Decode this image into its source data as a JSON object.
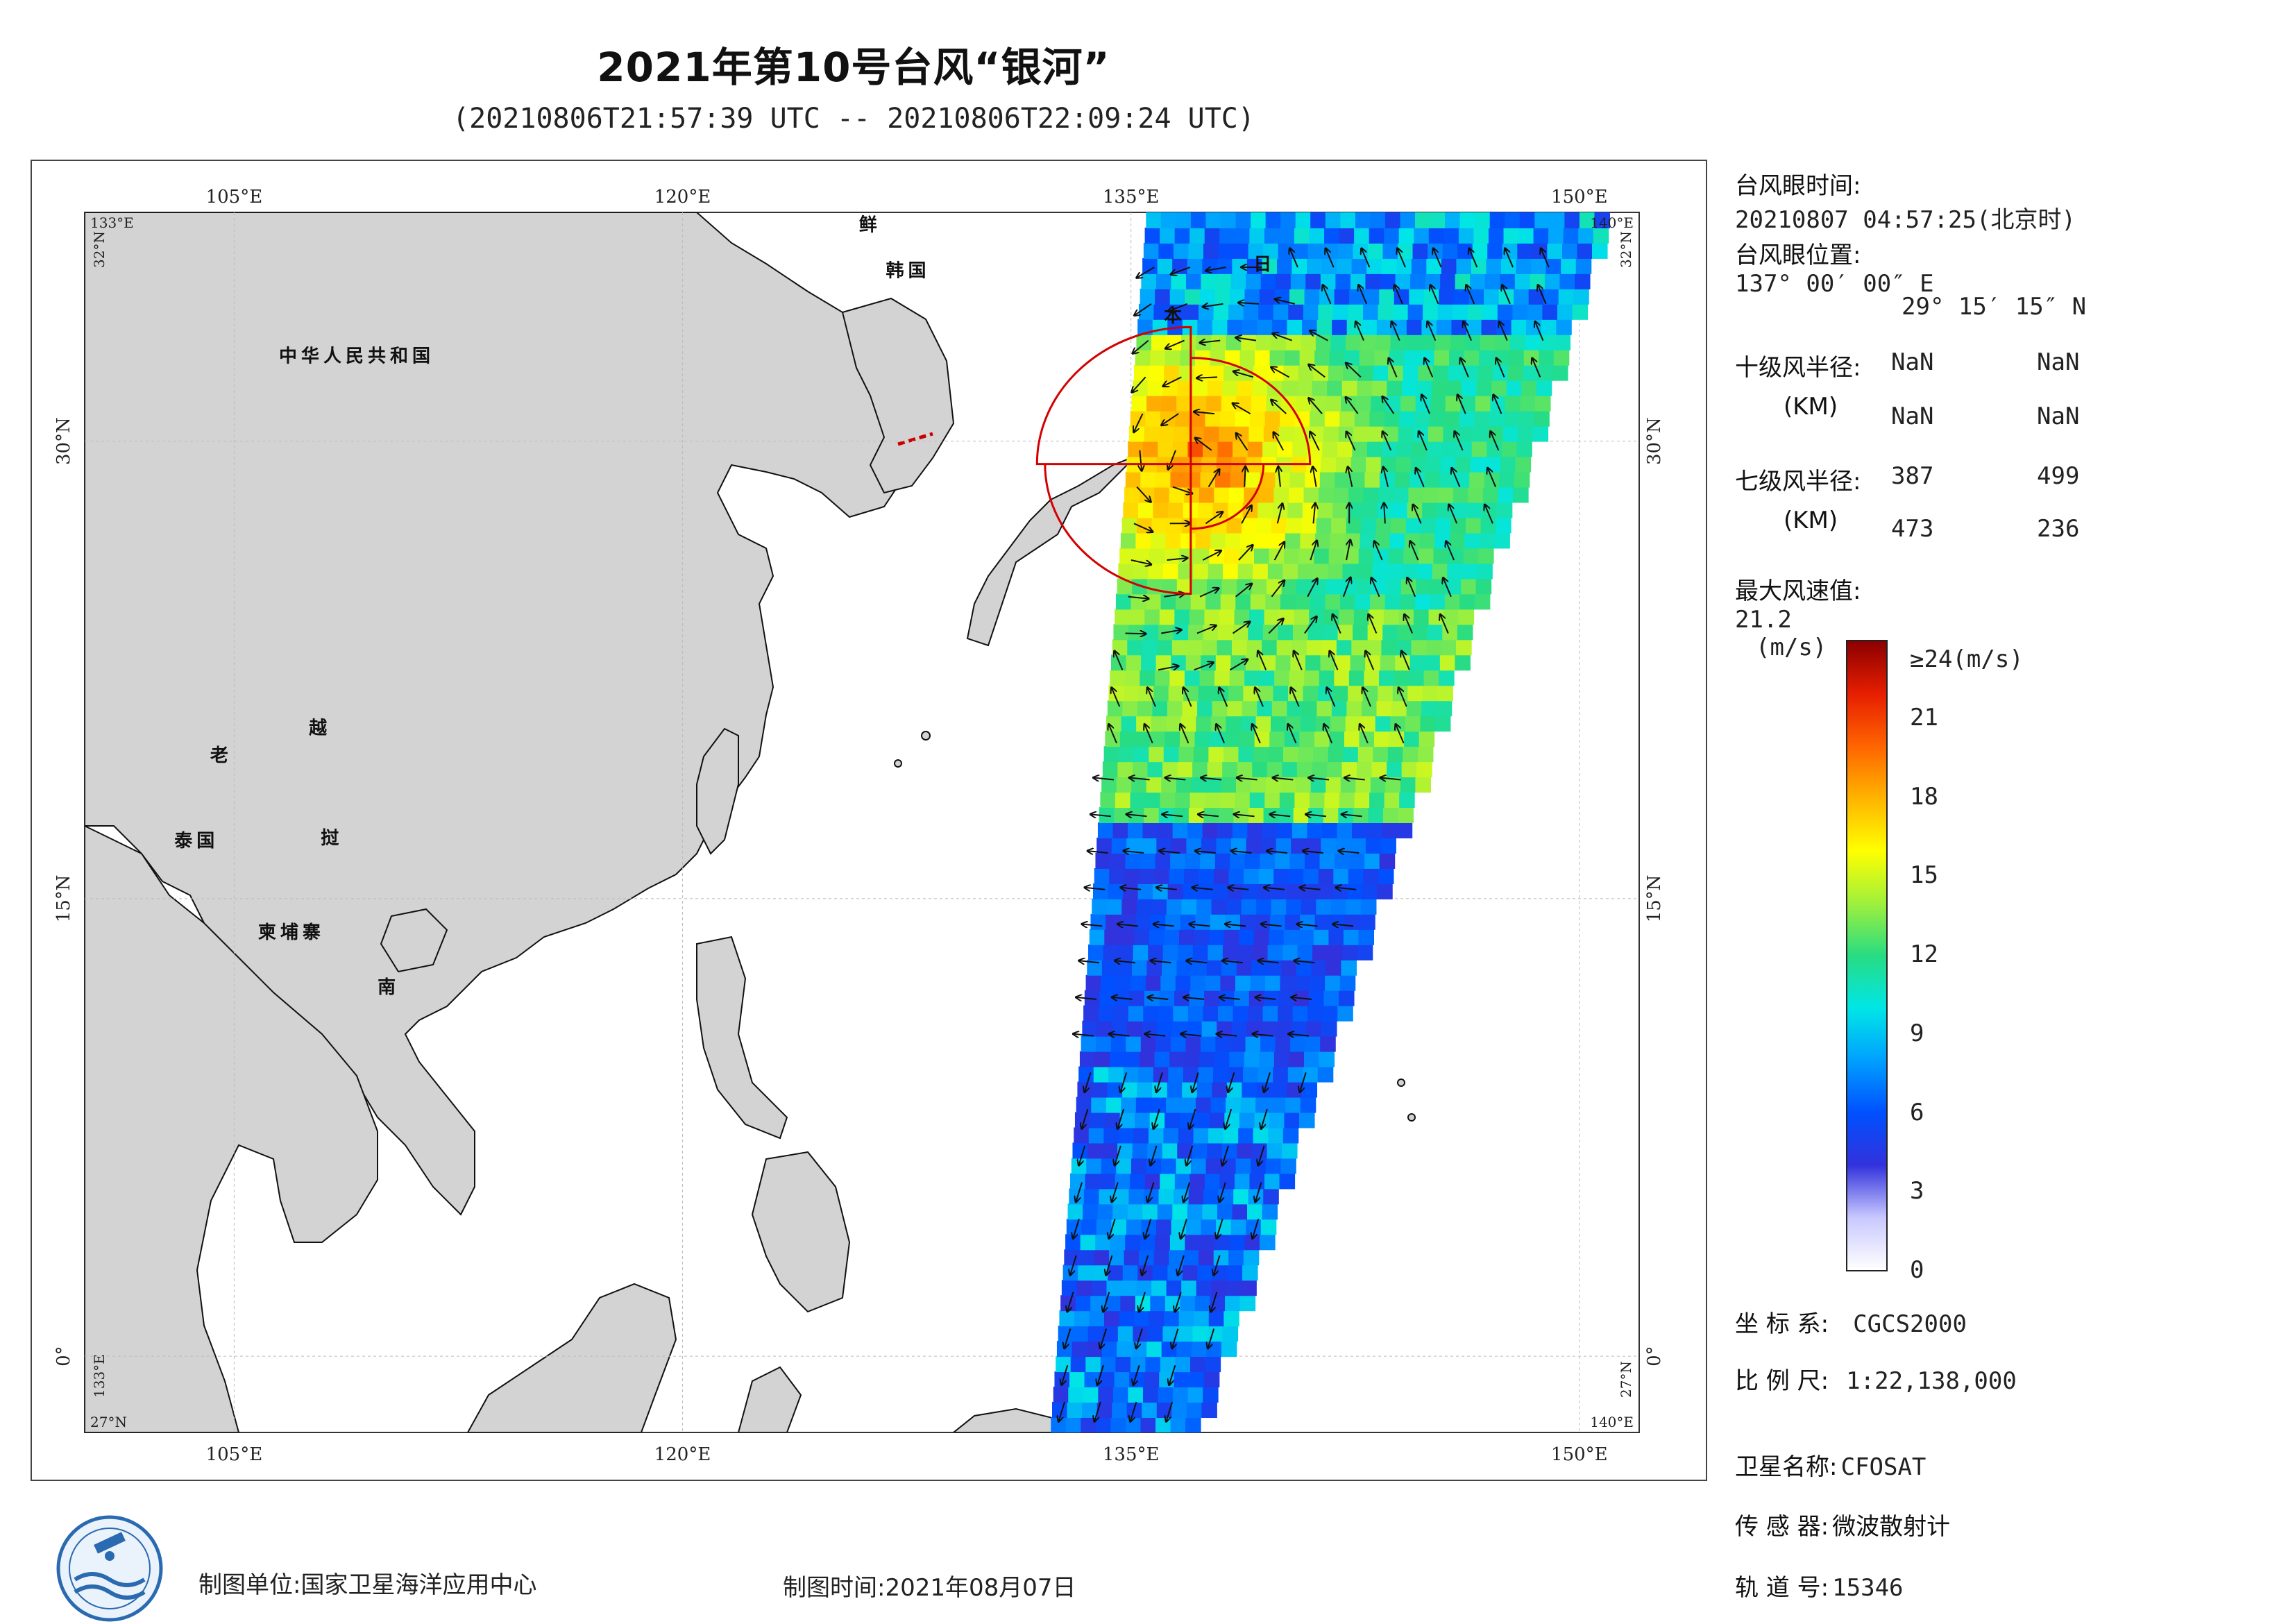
{
  "title": "2021年第10号台风“银河”",
  "subtitle": "(20210806T21:57:39 UTC -- 20210806T22:09:24 UTC)",
  "map": {
    "lon_range": [
      100,
      152
    ],
    "lat_range": [
      -2.5,
      37.5
    ],
    "top_lon_labels": [
      "105°E",
      "120°E",
      "135°E",
      "150°E"
    ],
    "bottom_lon_labels": [
      "105°E",
      "120°E",
      "135°E",
      "150°E"
    ],
    "lon_ticks": [
      105,
      120,
      135,
      150
    ],
    "lat_ticks": [
      0,
      15,
      30
    ],
    "left_lat_labels": [
      "0°",
      "15°N",
      "30°N"
    ],
    "right_lat_labels": [
      "0°",
      "15°N",
      "30°N"
    ],
    "corner_labels": {
      "top_left_lon": "133°E",
      "top_left_lat": "32°N",
      "top_right_lon": "140°E",
      "top_right_lat": "32°N",
      "bottom_left_lon": "133°E",
      "bottom_left_lat": "27°N",
      "bottom_right_lon": "140°E",
      "bottom_right_lat": "27°N"
    },
    "country_labels": [
      {
        "text": "中华人民共和国",
        "lon": 106.5,
        "lat": 32.6
      },
      {
        "text": "鲜",
        "lon": 125.9,
        "lat": 36.9
      },
      {
        "text": "韩国",
        "lon": 126.8,
        "lat": 35.4
      },
      {
        "text": "日",
        "lon": 139.1,
        "lat": 35.6
      },
      {
        "text": "本",
        "lon": 136.1,
        "lat": 33.9
      },
      {
        "text": "老",
        "lon": 104.2,
        "lat": 19.5
      },
      {
        "text": "越",
        "lon": 107.5,
        "lat": 20.4
      },
      {
        "text": "泰国",
        "lon": 103.0,
        "lat": 16.7
      },
      {
        "text": "挝",
        "lon": 107.9,
        "lat": 16.8
      },
      {
        "text": "柬埔寨",
        "lon": 105.8,
        "lat": 13.7
      },
      {
        "text": "南",
        "lon": 109.8,
        "lat": 11.9
      }
    ],
    "land_color": "#d3d3d3",
    "ocean_color": "#ffffff",
    "typhoon_center": {
      "lon": 137.0,
      "lat": 29.25
    },
    "wind_radius_7_km": {
      "ne": 387,
      "nw": 499,
      "sw": 473,
      "se": 236
    },
    "radius_color": "#d40000"
  },
  "info": {
    "eye_time_label": "台风眼时间:",
    "eye_time_value": "20210807 04:57:25(北京时)",
    "eye_pos_label": "台风眼位置:",
    "eye_pos_lon": "137° 00′ 00″ E",
    "eye_pos_lat": "29° 15′ 15″ N",
    "r10_label": "十级风半径:",
    "r10_unit": "(KM)",
    "r10_values": [
      "NaN",
      "NaN",
      "NaN",
      "NaN"
    ],
    "r7_label": "七级风半径:",
    "r7_unit": "(KM)",
    "r7_values": [
      "387",
      "499",
      "473",
      "236"
    ],
    "max_wind_label": "最大风速值:",
    "max_wind_value": "21.2",
    "max_wind_unit": "(m/s)",
    "coord_label": "坐 标 系:",
    "coord_value": "CGCS2000",
    "scale_label": "比 例 尺:",
    "scale_value": "1:22,138,000",
    "satellite_label": "卫星名称:",
    "satellite_value": "CFOSAT",
    "sensor_label": "传 感 器:",
    "sensor_value": "微波散射计",
    "orbit_label": "轨 道 号:",
    "orbit_value": "15346"
  },
  "colorbar": {
    "top_label": "≥24(m/s)",
    "ticks": [
      "21",
      "18",
      "15",
      "12",
      "9",
      "6",
      "3",
      "0"
    ],
    "tick_values": [
      21,
      18,
      15,
      12,
      9,
      6,
      3,
      0
    ],
    "min": 0,
    "max": 24,
    "unit": "(m/s)",
    "colors": [
      "#ffffff",
      "#c8c8ff",
      "#3232dc",
      "#0050ff",
      "#00a0ff",
      "#00e6e6",
      "#28dc82",
      "#a0f03c",
      "#ffff00",
      "#ffb400",
      "#ff6400",
      "#e61e00",
      "#8c0000"
    ]
  },
  "footer": {
    "producer": "制图单位:国家卫星海洋应用中心",
    "date": "制图时间:2021年08月07日"
  }
}
